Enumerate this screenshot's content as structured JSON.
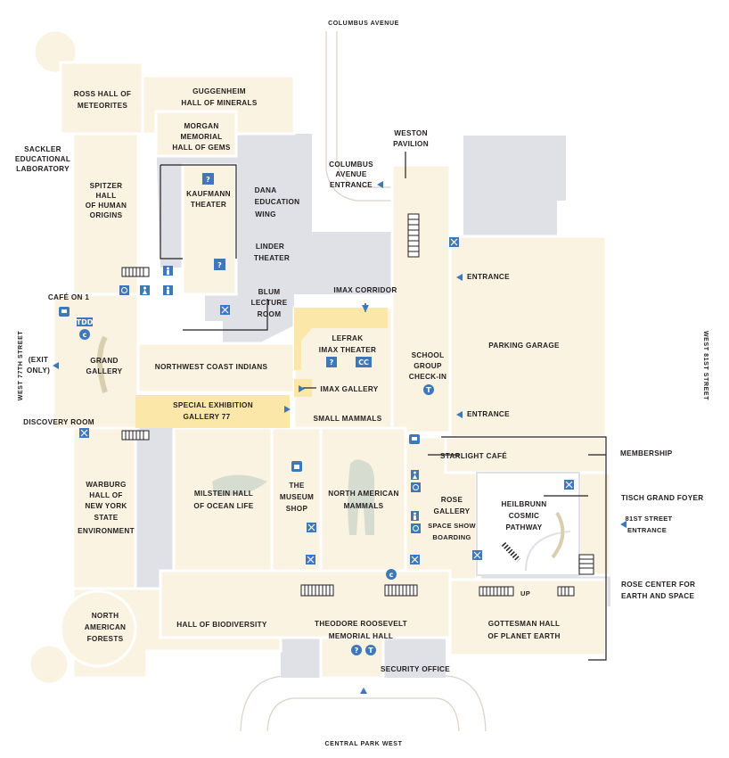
{
  "colors": {
    "hall": "#fbf3e1",
    "service": "#dfe1e6",
    "highlight": "#fbe7a7",
    "wall": "#ffffff",
    "line": "#231f20",
    "icon": "#3f78b8",
    "street_line": "#d9d2c6"
  },
  "streets": {
    "north": "COLUMBUS AVENUE",
    "south": "CENTRAL PARK WEST",
    "west": "WEST 77TH STREET",
    "east": "WEST 81ST STREET"
  },
  "labels": {
    "ross_hall": [
      "ROSS HALL OF",
      "METEORITES"
    ],
    "guggenheim": [
      "GUGGENHEIM",
      "HALL OF MINERALS"
    ],
    "morgan": [
      "MORGAN",
      "MEMORIAL",
      "HALL OF GEMS"
    ],
    "sackler": [
      "SACKLER",
      "EDUCATIONAL",
      "LABORATORY"
    ],
    "weston": [
      "WESTON",
      "PAVILION"
    ],
    "columbus_entrance": [
      "COLUMBUS",
      "AVENUE",
      "ENTRANCE"
    ],
    "spitzer": [
      "SPITZER",
      "HALL",
      "OF HUMAN",
      "ORIGINS"
    ],
    "kaufmann": [
      "KAUFMANN",
      "THEATER"
    ],
    "dana": [
      "DANA",
      "EDUCATION",
      "WING"
    ],
    "linder": [
      "LINDER",
      "THEATER"
    ],
    "blum": [
      "BLUM",
      "LECTURE",
      "ROOM"
    ],
    "imax_corridor": "IMAX CORRIDOR",
    "cafe_on_1": "CAFÉ ON 1",
    "lefrak": [
      "LEFRAK",
      "IMAX THEATER"
    ],
    "school_group": [
      "SCHOOL",
      "GROUP",
      "CHECK-IN"
    ],
    "parking": "PARKING GARAGE",
    "entrance_upper": "ENTRANCE",
    "entrance_lower": "ENTRANCE",
    "exit_only": [
      "(EXIT",
      "ONLY)"
    ],
    "grand_gallery": [
      "GRAND",
      "GALLERY"
    ],
    "nw_coast": "NORTHWEST COAST INDIANS",
    "imax_gallery": "IMAX GALLERY",
    "special_exhibition": [
      "SPECIAL EXHIBITION",
      "GALLERY 77"
    ],
    "small_mammals": "SMALL MAMMALS",
    "discovery_room": "DISCOVERY ROOM",
    "starlight": "STARLIGHT CAFÉ",
    "membership": "MEMBERSHIP",
    "warburg": [
      "WARBURG",
      "HALL OF",
      "NEW YORK",
      "STATE",
      "ENVIRONMENT"
    ],
    "milstein": [
      "MILSTEIN HALL",
      "OF OCEAN LIFE"
    ],
    "museum_shop": [
      "THE",
      "MUSEUM",
      "SHOP"
    ],
    "na_mammals": [
      "NORTH AMERICAN",
      "MAMMALS"
    ],
    "rose_gallery": [
      "ROSE",
      "GALLERY"
    ],
    "space_show": [
      "SPACE SHOW",
      "BOARDING"
    ],
    "heilbrunn": [
      "HEILBRUNN",
      "COSMIC",
      "PATHWAY"
    ],
    "tisch": "TISCH GRAND FOYER",
    "entrance_81": [
      "81ST STREET",
      "ENTRANCE"
    ],
    "up": "UP",
    "rose_center": [
      "ROSE CENTER FOR",
      "EARTH AND SPACE"
    ],
    "na_forests": [
      "NORTH",
      "AMERICAN",
      "FORESTS"
    ],
    "biodiversity": "HALL OF BIODIVERSITY",
    "roosevelt": [
      "THEODORE ROOSEVELT",
      "MEMORIAL HALL"
    ],
    "gottesman": [
      "GOTTESMAN HALL",
      "OF PLANET EARTH"
    ],
    "security": "SECURITY OFFICE"
  },
  "icons": {
    "tdd": "TDD",
    "cc": "CC",
    "info_glyph": "?",
    "ticket_glyph": "T"
  }
}
